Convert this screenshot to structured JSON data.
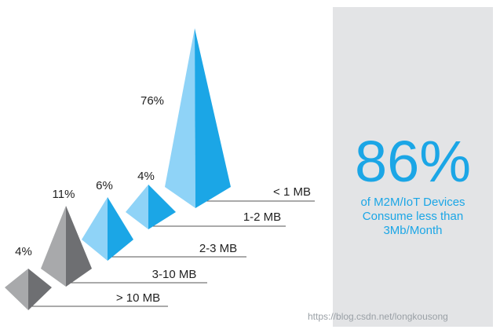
{
  "chart_data": {
    "type": "pyramid",
    "categories": [
      "> 10 MB",
      "3-10 MB",
      "2-3 MB",
      "1-2 MB",
      "< 1 MB"
    ],
    "values": [
      4,
      11,
      6,
      4,
      76
    ],
    "value_labels": [
      "4%",
      "11%",
      "6%",
      "4%",
      "76%"
    ],
    "unit": "%"
  },
  "stat": {
    "value": "86%",
    "lines": [
      "of M2M/IoT Devices",
      "Consume less than",
      "3Mb/Month"
    ]
  },
  "colors": {
    "gray_light": "#a8a9ab",
    "gray_dark": "#6e6f72",
    "blue_light": "#8fd3f7",
    "blue_dark": "#1ba6e6",
    "panel": "#e3e4e6",
    "rule": "#555555"
  },
  "watermark": "https://blog.csdn.net/longkousong"
}
